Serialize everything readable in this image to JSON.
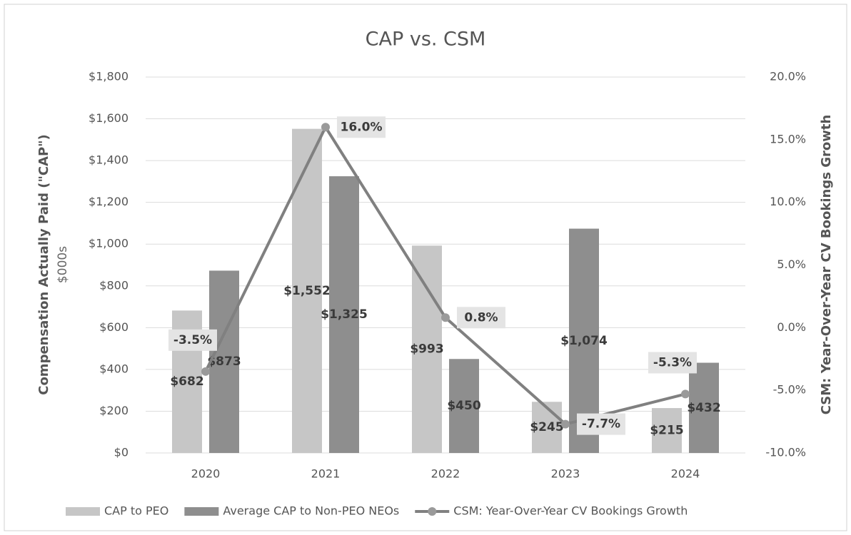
{
  "chart_data": {
    "type": "bar",
    "title": "CAP vs. CSM",
    "y_label": "Compensation Actually Paid (\"CAP\")",
    "y_sublabel": "$000s",
    "y2_label": "CSM: Year-Over-Year CV Bookings Growth",
    "categories": [
      "2020",
      "2021",
      "2022",
      "2023",
      "2024"
    ],
    "series": [
      {
        "name": "CAP to PEO",
        "type": "bar",
        "color": "#c6c6c6",
        "values": [
          682,
          1552,
          993,
          245,
          215
        ],
        "value_labels": [
          "$682",
          "$1,552",
          "$993",
          "$245",
          "$215"
        ]
      },
      {
        "name": "Average CAP to Non-PEO NEOs",
        "type": "bar",
        "color": "#8e8e8e",
        "values": [
          873,
          1325,
          450,
          1074,
          432
        ],
        "value_labels": [
          "$873",
          "$1,325",
          "$450",
          "$1,074",
          "$432"
        ]
      },
      {
        "name": "CSM: Year-Over-Year CV Bookings Growth",
        "type": "line",
        "axis": "y2",
        "color": "#808080",
        "values": [
          -3.5,
          16.0,
          0.8,
          -7.7,
          -5.3
        ],
        "value_labels": [
          "-3.5%",
          "16.0%",
          "0.8%",
          "-7.7%",
          "-5.3%"
        ]
      }
    ],
    "ylim": [
      0,
      1800
    ],
    "yticks": [
      {
        "value": 0,
        "label": "$0"
      },
      {
        "value": 200,
        "label": "$200"
      },
      {
        "value": 400,
        "label": "$400"
      },
      {
        "value": 600,
        "label": "$600"
      },
      {
        "value": 800,
        "label": "$800"
      },
      {
        "value": 1000,
        "label": "$1,000"
      },
      {
        "value": 1200,
        "label": "$1,200"
      },
      {
        "value": 1400,
        "label": "$1,400"
      },
      {
        "value": 1600,
        "label": "$1,600"
      },
      {
        "value": 1800,
        "label": "$1,800"
      }
    ],
    "y2lim": [
      -10,
      20
    ],
    "y2ticks": [
      {
        "value": -10,
        "label": "-10.0%"
      },
      {
        "value": -5,
        "label": "-5.0%"
      },
      {
        "value": 0,
        "label": "0.0%"
      },
      {
        "value": 5,
        "label": "5.0%"
      },
      {
        "value": 10,
        "label": "10.0%"
      },
      {
        "value": 15,
        "label": "15.0%"
      },
      {
        "value": 20,
        "label": "20.0%"
      }
    ],
    "grid": true,
    "legend": "bottom"
  }
}
